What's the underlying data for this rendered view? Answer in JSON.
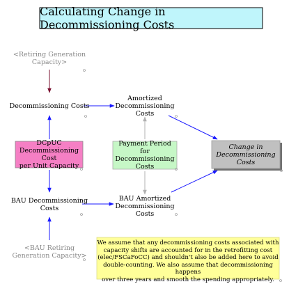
{
  "title": "Calculating Change in Decommissioning Costs",
  "nodes": {
    "retiring_generation_capacity": "<Retiring Generation\nCapacity>",
    "decommissioning_costs": "Decommissioning Costs",
    "amortized_decommissioning_costs": "Amortized\nDecommissioning\nCosts",
    "dcpuc": "DCpUC\nDecommissioning Cost\nper Unit Capacity",
    "payment_period": "Payment Period for\nDecommissioning\nCosts",
    "change_in_decommissioning_costs": "Change in\nDecommissioning\nCosts",
    "bau_decommissioning_costs": "BAU Decommissioning\nCosts",
    "bau_amortized_decommissioning_costs": "BAU Amortized\nDecommissioning\nCosts",
    "bau_retiring_generation_capacity": "<BAU Retiring\nGeneration Capacity>"
  },
  "note": "We assume that any decommissioning costs associated with\ncapacity shifts are accounted for in the retrofitting cost\n(elec/FSCaFoCC) and shouldn't also be added here to avoid\ndouble-counting. We also assume that decommissioning happens\nover three years and smooth the spending appropriately.",
  "colors": {
    "title_fill": "#bff5fb",
    "dcpuc_fill": "#f57fc4",
    "payment_fill": "#c6f7c6",
    "change_fill": "#c0c0c0",
    "note_fill": "#ffff99",
    "arrow_blue": "#1a1aff",
    "arrow_gray": "#b0b0b0",
    "arrow_maroon": "#7a1030"
  }
}
